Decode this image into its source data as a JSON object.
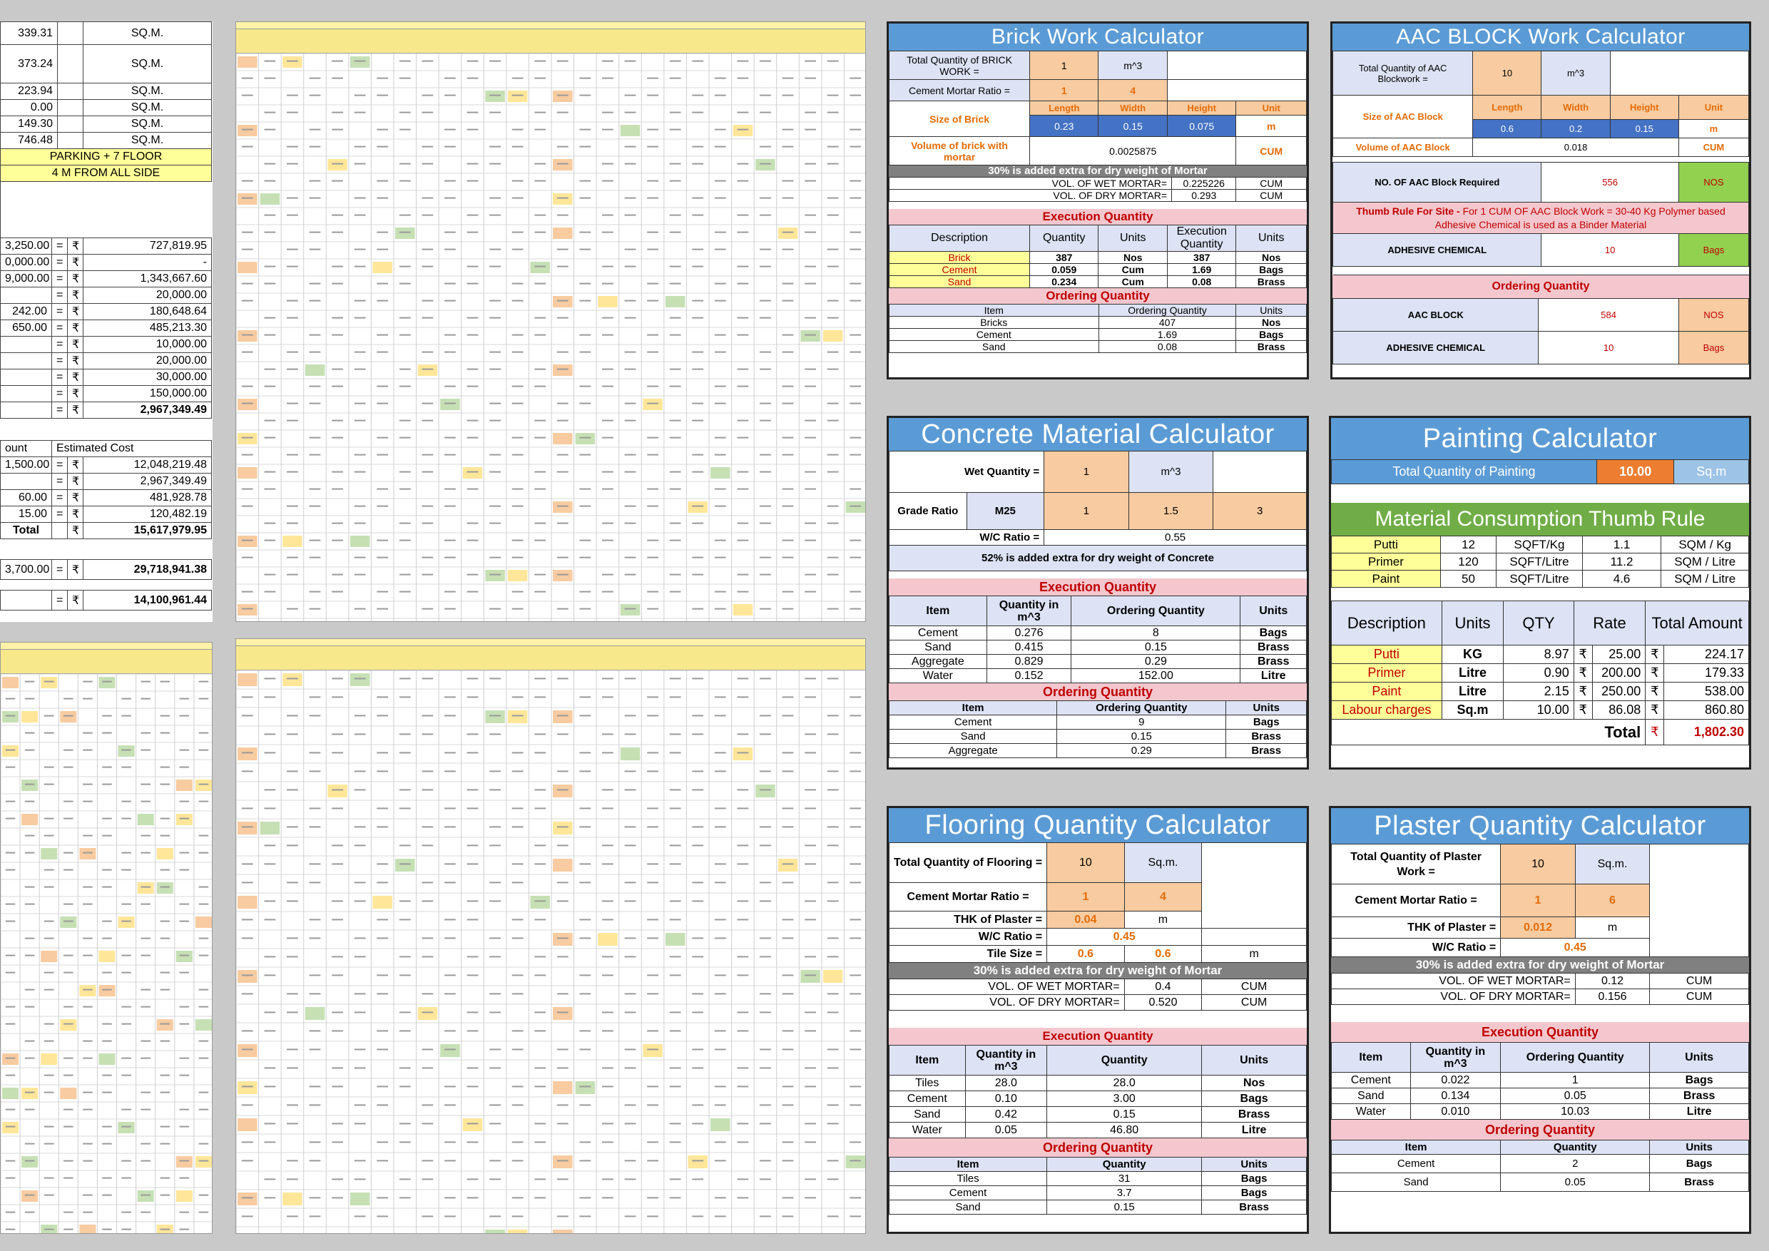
{
  "left_summary": {
    "areas": [
      {
        "value": "339.31",
        "unit": "SQ.M."
      },
      {
        "value": "373.24",
        "unit": "SQ.M."
      },
      {
        "value": "223.94",
        "unit": "SQ.M."
      },
      {
        "value": "0.00",
        "unit": "SQ.M."
      },
      {
        "value": "149.30",
        "unit": "SQ.M."
      },
      {
        "value": "746.48",
        "unit": "SQ.M."
      }
    ],
    "floors_note": "PARKING + 7 FLOOR",
    "setback_note": "4 M FROM ALL SIDE",
    "cost_rows": [
      {
        "rate": "3,250.00",
        "eq": "=",
        "cur": "₹",
        "amount": "727,819.95"
      },
      {
        "rate": "0,000.00",
        "eq": "=",
        "cur": "₹",
        "amount": "-"
      },
      {
        "rate": "9,000.00",
        "eq": "=",
        "cur": "₹",
        "amount": "1,343,667.60"
      },
      {
        "rate": "",
        "eq": "=",
        "cur": "₹",
        "amount": "20,000.00"
      },
      {
        "rate": "242.00",
        "eq": "=",
        "cur": "₹",
        "amount": "180,648.64"
      },
      {
        "rate": "650.00",
        "eq": "=",
        "cur": "₹",
        "amount": "485,213.30"
      },
      {
        "rate": "",
        "eq": "=",
        "cur": "₹",
        "amount": "10,000.00"
      },
      {
        "rate": "",
        "eq": "=",
        "cur": "₹",
        "amount": "20,000.00"
      },
      {
        "rate": "",
        "eq": "=",
        "cur": "₹",
        "amount": "30,000.00"
      },
      {
        "rate": "",
        "eq": "=",
        "cur": "₹",
        "amount": "150,000.00"
      },
      {
        "rate": "",
        "eq": "=",
        "cur": "₹",
        "amount": "2,967,349.49"
      }
    ],
    "est_header": {
      "left": "ount",
      "right": "Estimated Cost"
    },
    "est_rows": [
      {
        "rate": "1,500.00",
        "eq": "=",
        "cur": "₹",
        "amount": "12,048,219.48"
      },
      {
        "rate": "",
        "eq": "=",
        "cur": "₹",
        "amount": "2,967,349.49"
      },
      {
        "rate": "60.00",
        "eq": "=",
        "cur": "₹",
        "amount": "481,928.78"
      },
      {
        "rate": "15.00",
        "eq": "=",
        "cur": "₹",
        "amount": "120,482.19"
      },
      {
        "rate": "Total",
        "eq": "",
        "cur": "₹",
        "amount": "15,617,979.95"
      }
    ],
    "grand": {
      "rate": "3,700.00",
      "eq": "=",
      "cur": "₹",
      "amount": "29,718,941.38"
    },
    "final": {
      "eq": "=",
      "cur": "₹",
      "amount": "14,100,961.44"
    }
  },
  "brick": {
    "title": "Brick Work Calculator",
    "qty_label": "Total Quantity of BRICK WORK =",
    "qty": "1",
    "qty_unit": "m^3",
    "ratio_label": "Cement Mortar Ratio =",
    "ratio_a": "1",
    "ratio_b": "4",
    "size_label": "Size of Brick",
    "dims": [
      "Length",
      "Width",
      "Height",
      "Unit"
    ],
    "dim_vals": [
      "0.23",
      "0.15",
      "0.075",
      "m"
    ],
    "vol_label": "Volume of brick with mortar",
    "vol": "0.0025875",
    "vol_unit": "CUM",
    "extra": "30% is added extra for dry weight of Mortar",
    "wet_label": "VOL. OF WET MORTAR=",
    "wet": "0.225226",
    "wet_unit": "CUM",
    "dry_label": "VOL. OF DRY MORTAR=",
    "dry": "0.293",
    "dry_unit": "CUM",
    "exec": "Execution Quantity",
    "exec_head": [
      "Description",
      "Quantity",
      "Units",
      "Execution Quantity",
      "Units"
    ],
    "exec_rows": [
      [
        "Brick",
        "387",
        "Nos",
        "387",
        "Nos"
      ],
      [
        "Cement",
        "0.059",
        "Cum",
        "1.69",
        "Bags"
      ],
      [
        "Sand",
        "0.234",
        "Cum",
        "0.08",
        "Brass"
      ]
    ],
    "order": "Ordering Quantity",
    "order_head": [
      "Item",
      "Ordering Quantity",
      "Units"
    ],
    "order_rows": [
      [
        "Bricks",
        "407",
        "Nos"
      ],
      [
        "Cement",
        "1.69",
        "Bags"
      ],
      [
        "Sand",
        "0.08",
        "Brass"
      ]
    ]
  },
  "aac": {
    "title": "AAC BLOCK Work Calculator",
    "qty_label": "Total Quantity of AAC Blockwork =",
    "qty": "10",
    "qty_unit": "m^3",
    "size_label": "Size of AAC Block",
    "dims": [
      "Length",
      "Width",
      "Height",
      "Unit"
    ],
    "dim_vals": [
      "0.6",
      "0.2",
      "0.15",
      "m"
    ],
    "vol_label": "Volume of AAC Block",
    "vol": "0.018",
    "vol_unit": "CUM",
    "nos_label": "NO. OF AAC Block Required",
    "nos": "556",
    "nos_unit": "NOS",
    "thumb_bold": "Thumb Rule For Site -",
    "thumb": "For 1 CUM OF AAC Block Work = 30-40 Kg Polymer based Adhesive Chemical is used as a Binder Material",
    "adh_label": "ADHESIVE CHEMICAL",
    "adh": "10",
    "adh_unit": "Bags",
    "order": "Ordering Quantity",
    "order_rows": [
      [
        "AAC BLOCK",
        "584",
        "NOS"
      ],
      [
        "ADHESIVE CHEMICAL",
        "10",
        "Bags"
      ]
    ]
  },
  "concrete": {
    "title": "Concrete Material Calculator",
    "wet_label": "Wet Quantity =",
    "wet": "1",
    "wet_unit": "m^3",
    "grade_label": "Grade Ratio",
    "grade": "M25",
    "ratio": [
      "1",
      "1.5",
      "3"
    ],
    "wc_label": "W/C Ratio =",
    "wc": "0.55",
    "extra": "52% is added extra for dry weight of Concrete",
    "exec": "Execution Quantity",
    "exec_head": [
      "Item",
      "Quantity in m^3",
      "Ordering Quantity",
      "Units"
    ],
    "exec_rows": [
      [
        "Cement",
        "0.276",
        "8",
        "Bags"
      ],
      [
        "Sand",
        "0.415",
        "0.15",
        "Brass"
      ],
      [
        "Aggregate",
        "0.829",
        "0.29",
        "Brass"
      ],
      [
        "Water",
        "0.152",
        "152.00",
        "Litre"
      ]
    ],
    "order": "Ordering Quantity",
    "order_head": [
      "Item",
      "Ordering Quantity",
      "Units"
    ],
    "order_rows": [
      [
        "Cement",
        "9",
        "Bags"
      ],
      [
        "Sand",
        "0.15",
        "Brass"
      ],
      [
        "Aggregate",
        "0.29",
        "Brass"
      ]
    ]
  },
  "painting": {
    "title": "Painting Calculator",
    "qty_label": "Total Quantity of Painting",
    "qty": "10.00",
    "qty_unit": "Sq.m",
    "thumb_title": "Material Consumption Thumb Rule",
    "thumb_rows": [
      [
        "Putti",
        "12",
        "SQFT/Kg",
        "1.1",
        "SQM / Kg"
      ],
      [
        "Primer",
        "120",
        "SQFT/Litre",
        "11.2",
        "SQM / Litre"
      ],
      [
        "Paint",
        "50",
        "SQFT/Litre",
        "4.6",
        "SQM / Litre"
      ]
    ],
    "head": [
      "Description",
      "Units",
      "QTY",
      "Rate",
      "Total Amount"
    ],
    "rows": [
      [
        "Putti",
        "KG",
        "8.97",
        "₹",
        "25.00",
        "₹",
        "224.17"
      ],
      [
        "Primer",
        "Litre",
        "0.90",
        "₹",
        "200.00",
        "₹",
        "179.33"
      ],
      [
        "Paint",
        "Litre",
        "2.15",
        "₹",
        "250.00",
        "₹",
        "538.00"
      ],
      [
        "Labour charges",
        "Sq.m",
        "10.00",
        "₹",
        "86.08",
        "₹",
        "860.80"
      ]
    ],
    "total_label": "Total",
    "total_cur": "₹",
    "total": "1,802.30"
  },
  "flooring": {
    "title": "Flooring Quantity Calculator",
    "qty_label": "Total Quantity of Flooring =",
    "qty": "10",
    "qty_unit": "Sq.m.",
    "ratio_label": "Cement Mortar Ratio =",
    "ratio_a": "1",
    "ratio_b": "4",
    "thk_label": "THK of Plaster =",
    "thk": "0.04",
    "thk_unit": "m",
    "wc_label": "W/C Ratio =",
    "wc": "0.45",
    "tile_label": "Tile Size =",
    "tile_a": "0.6",
    "tile_b": "0.6",
    "tile_unit": "m",
    "extra": "30% is added extra for dry weight of Mortar",
    "wet_label": "VOL. OF WET MORTAR=",
    "wet": "0.4",
    "wet_unit": "CUM",
    "dry_label": "VOL. OF DRY MORTAR=",
    "dry": "0.520",
    "dry_unit": "CUM",
    "exec": "Execution Quantity",
    "exec_head": [
      "Item",
      "Quantity in m^3",
      "Quantity",
      "Units"
    ],
    "exec_rows": [
      [
        "Tiles",
        "28.0",
        "28.0",
        "Nos"
      ],
      [
        "Cement",
        "0.10",
        "3.00",
        "Bags"
      ],
      [
        "Sand",
        "0.42",
        "0.15",
        "Brass"
      ],
      [
        "Water",
        "0.05",
        "46.80",
        "Litre"
      ]
    ],
    "order": "Ordering Quantity",
    "order_head": [
      "Item",
      "Quantity",
      "Units"
    ],
    "order_rows": [
      [
        "Tiles",
        "31",
        "Bags"
      ],
      [
        "Cement",
        "3.7",
        "Bags"
      ],
      [
        "Sand",
        "0.15",
        "Brass"
      ]
    ]
  },
  "plaster": {
    "title": "Plaster Quantity Calculator",
    "qty_label": "Total Quantity of Plaster Work =",
    "qty": "10",
    "qty_unit": "Sq.m.",
    "ratio_label": "Cement Mortar Ratio =",
    "ratio_a": "1",
    "ratio_b": "6",
    "thk_label": "THK of Plaster =",
    "thk": "0.012",
    "thk_unit": "m",
    "wc_label": "W/C Ratio =",
    "wc": "0.45",
    "extra": "30% is added extra for dry weight of Mortar",
    "wet_label": "VOL. OF WET MORTAR=",
    "wet": "0.12",
    "wet_unit": "CUM",
    "dry_label": "VOL. OF DRY MORTAR=",
    "dry": "0.156",
    "dry_unit": "CUM",
    "exec": "Execution Quantity",
    "exec_head": [
      "Item",
      "Quantity in m^3",
      "Ordering Quantity",
      "Units"
    ],
    "exec_rows": [
      [
        "Cement",
        "0.022",
        "1",
        "Bags"
      ],
      [
        "Sand",
        "0.134",
        "0.05",
        "Brass"
      ],
      [
        "Water",
        "0.010",
        "10.03",
        "Litre"
      ]
    ],
    "order": "Ordering Quantity",
    "order_head": [
      "Item",
      "Quantity",
      "Units"
    ],
    "order_rows": [
      [
        "Cement",
        "2",
        "Bags"
      ],
      [
        "Sand",
        "0.05",
        "Brass"
      ]
    ]
  }
}
